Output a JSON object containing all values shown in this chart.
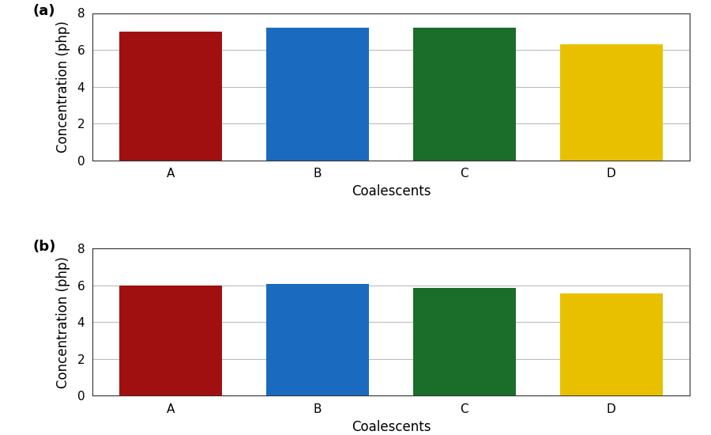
{
  "categories": [
    "A",
    "B",
    "C",
    "D"
  ],
  "values_a": [
    7.0,
    7.2,
    7.2,
    6.3
  ],
  "values_b": [
    6.0,
    6.1,
    5.85,
    5.55
  ],
  "bar_colors": [
    "#A01010",
    "#1A6BBF",
    "#1A6E2A",
    "#E8C000"
  ],
  "xlabel": "Coalescents",
  "ylabel": "Concentration (php)",
  "label_a": "(a)",
  "label_b": "(b)",
  "ylim": [
    0,
    8
  ],
  "yticks": [
    0,
    2,
    4,
    6,
    8
  ],
  "bar_width": 0.7,
  "axis_label_fontsize": 12,
  "tick_fontsize": 11,
  "label_fontsize": 13,
  "background_color": "#ffffff",
  "grid_color": "#bbbbbb"
}
